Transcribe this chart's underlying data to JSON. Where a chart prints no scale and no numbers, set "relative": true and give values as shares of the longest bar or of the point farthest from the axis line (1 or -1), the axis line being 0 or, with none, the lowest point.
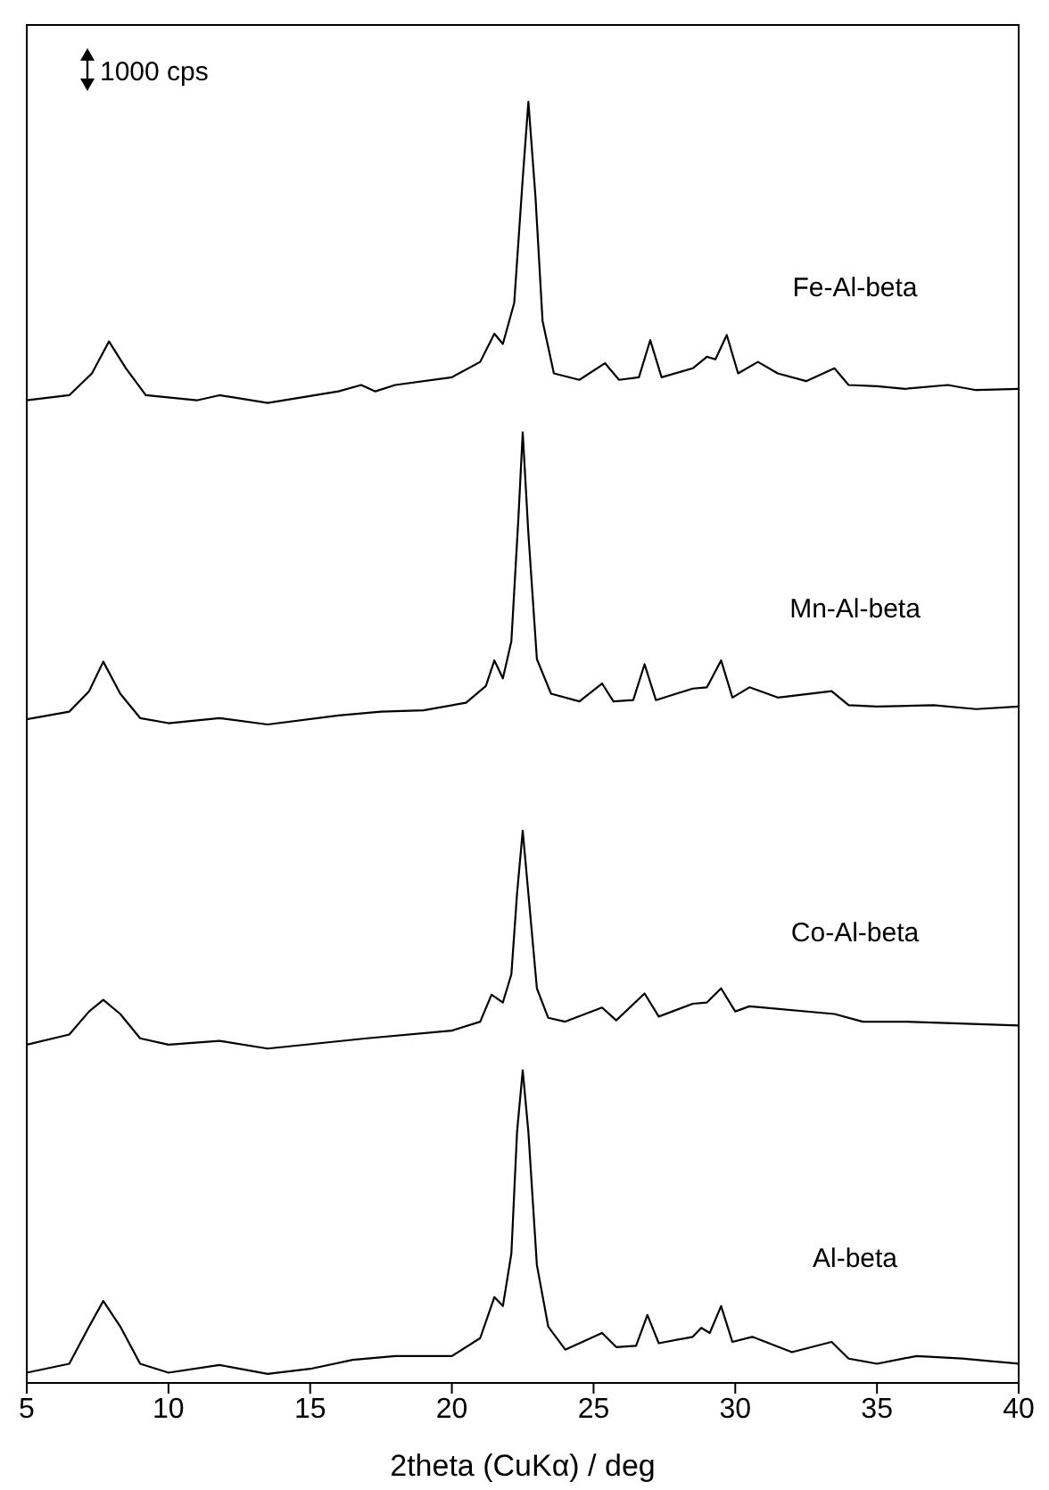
{
  "chart_data": {
    "type": "line",
    "relative": true,
    "xlabel": "2theta (CuKα) / deg",
    "xlim": [
      5,
      40
    ],
    "xticks": [
      5,
      10,
      15,
      20,
      25,
      30,
      35,
      40
    ],
    "grid": false,
    "legend": false,
    "marker": "none",
    "line_style": "solid",
    "annotations": [
      "1000 cps"
    ],
    "series": [
      {
        "name": "Fe-Al-beta",
        "color": "#000000",
        "x": [
          5,
          6.5,
          7.3,
          7.9,
          8.5,
          9.2,
          11,
          11.8,
          13.5,
          16,
          16.8,
          17.3,
          18,
          20,
          21,
          21.5,
          21.8,
          22.2,
          22.5,
          22.7,
          22.95,
          23.2,
          23.6,
          24.5,
          25.4,
          25.9,
          26.6,
          27,
          27.4,
          28.5,
          29,
          29.3,
          29.7,
          30.1,
          30.8,
          31.5,
          32.5,
          33.5,
          34,
          35,
          36,
          37.5,
          38.5,
          40
        ],
        "values": [
          0.767,
          0.771,
          0.788,
          0.813,
          0.792,
          0.771,
          0.767,
          0.771,
          0.765,
          0.774,
          0.779,
          0.774,
          0.779,
          0.785,
          0.797,
          0.819,
          0.811,
          0.843,
          0.94,
          1,
          0.926,
          0.829,
          0.788,
          0.783,
          0.796,
          0.783,
          0.785,
          0.814,
          0.785,
          0.792,
          0.801,
          0.799,
          0.818,
          0.788,
          0.797,
          0.788,
          0.782,
          0.792,
          0.779,
          0.778,
          0.776,
          0.779,
          0.775,
          0.776
        ]
      },
      {
        "name": "Mn-Al-beta",
        "color": "#000000",
        "x": [
          5,
          6.5,
          7.2,
          7.7,
          8.3,
          9,
          10,
          11.8,
          13.5,
          16,
          17.5,
          19,
          20.5,
          21.2,
          21.5,
          21.8,
          22.1,
          22.35,
          22.5,
          22.7,
          23,
          23.5,
          24.5,
          25.3,
          25.7,
          26.4,
          26.8,
          27.2,
          28.5,
          29,
          29.5,
          29.9,
          30.5,
          31.5,
          33.4,
          34,
          35,
          37,
          38.5,
          40
        ],
        "values": [
          0.518,
          0.524,
          0.54,
          0.563,
          0.538,
          0.519,
          0.515,
          0.519,
          0.514,
          0.521,
          0.524,
          0.525,
          0.531,
          0.544,
          0.564,
          0.55,
          0.579,
          0.676,
          0.742,
          0.663,
          0.565,
          0.538,
          0.532,
          0.546,
          0.532,
          0.533,
          0.561,
          0.533,
          0.542,
          0.543,
          0.564,
          0.535,
          0.543,
          0.535,
          0.54,
          0.529,
          0.528,
          0.529,
          0.526,
          0.528
        ]
      },
      {
        "name": "Co-Al-beta",
        "color": "#000000",
        "x": [
          5,
          6.5,
          7.2,
          7.7,
          8.3,
          9,
          10,
          11.8,
          13.5,
          17,
          20,
          21,
          21.4,
          21.8,
          22.1,
          22.3,
          22.5,
          22.7,
          23,
          23.4,
          24,
          25.3,
          25.8,
          26.8,
          27.3,
          28.5,
          29,
          29.5,
          30,
          30.5,
          33.5,
          34.5,
          36,
          40
        ],
        "values": [
          0.264,
          0.272,
          0.29,
          0.299,
          0.288,
          0.269,
          0.264,
          0.267,
          0.261,
          0.269,
          0.275,
          0.282,
          0.303,
          0.297,
          0.319,
          0.382,
          0.431,
          0.382,
          0.308,
          0.285,
          0.282,
          0.293,
          0.283,
          0.304,
          0.286,
          0.296,
          0.297,
          0.308,
          0.29,
          0.294,
          0.288,
          0.282,
          0.282,
          0.279
        ]
      },
      {
        "name": "Al-beta",
        "color": "#000000",
        "x": [
          5,
          6.5,
          7.2,
          7.7,
          8.3,
          9,
          10,
          11.8,
          13.5,
          15,
          16.5,
          18,
          20,
          21,
          21.5,
          21.8,
          22.1,
          22.3,
          22.5,
          22.7,
          23,
          23.4,
          24,
          25.3,
          25.8,
          26.5,
          26.9,
          27.3,
          28.5,
          28.8,
          29.1,
          29.5,
          29.9,
          30.6,
          32,
          33.4,
          34,
          35,
          36.4,
          38,
          40
        ],
        "values": [
          0.008,
          0.015,
          0.044,
          0.064,
          0.044,
          0.015,
          0.008,
          0.014,
          0.007,
          0.011,
          0.018,
          0.021,
          0.021,
          0.035,
          0.067,
          0.06,
          0.101,
          0.196,
          0.244,
          0.196,
          0.092,
          0.044,
          0.026,
          0.039,
          0.028,
          0.029,
          0.053,
          0.031,
          0.036,
          0.043,
          0.039,
          0.06,
          0.032,
          0.036,
          0.024,
          0.032,
          0.019,
          0.015,
          0.021,
          0.019,
          0.015
        ]
      }
    ]
  }
}
